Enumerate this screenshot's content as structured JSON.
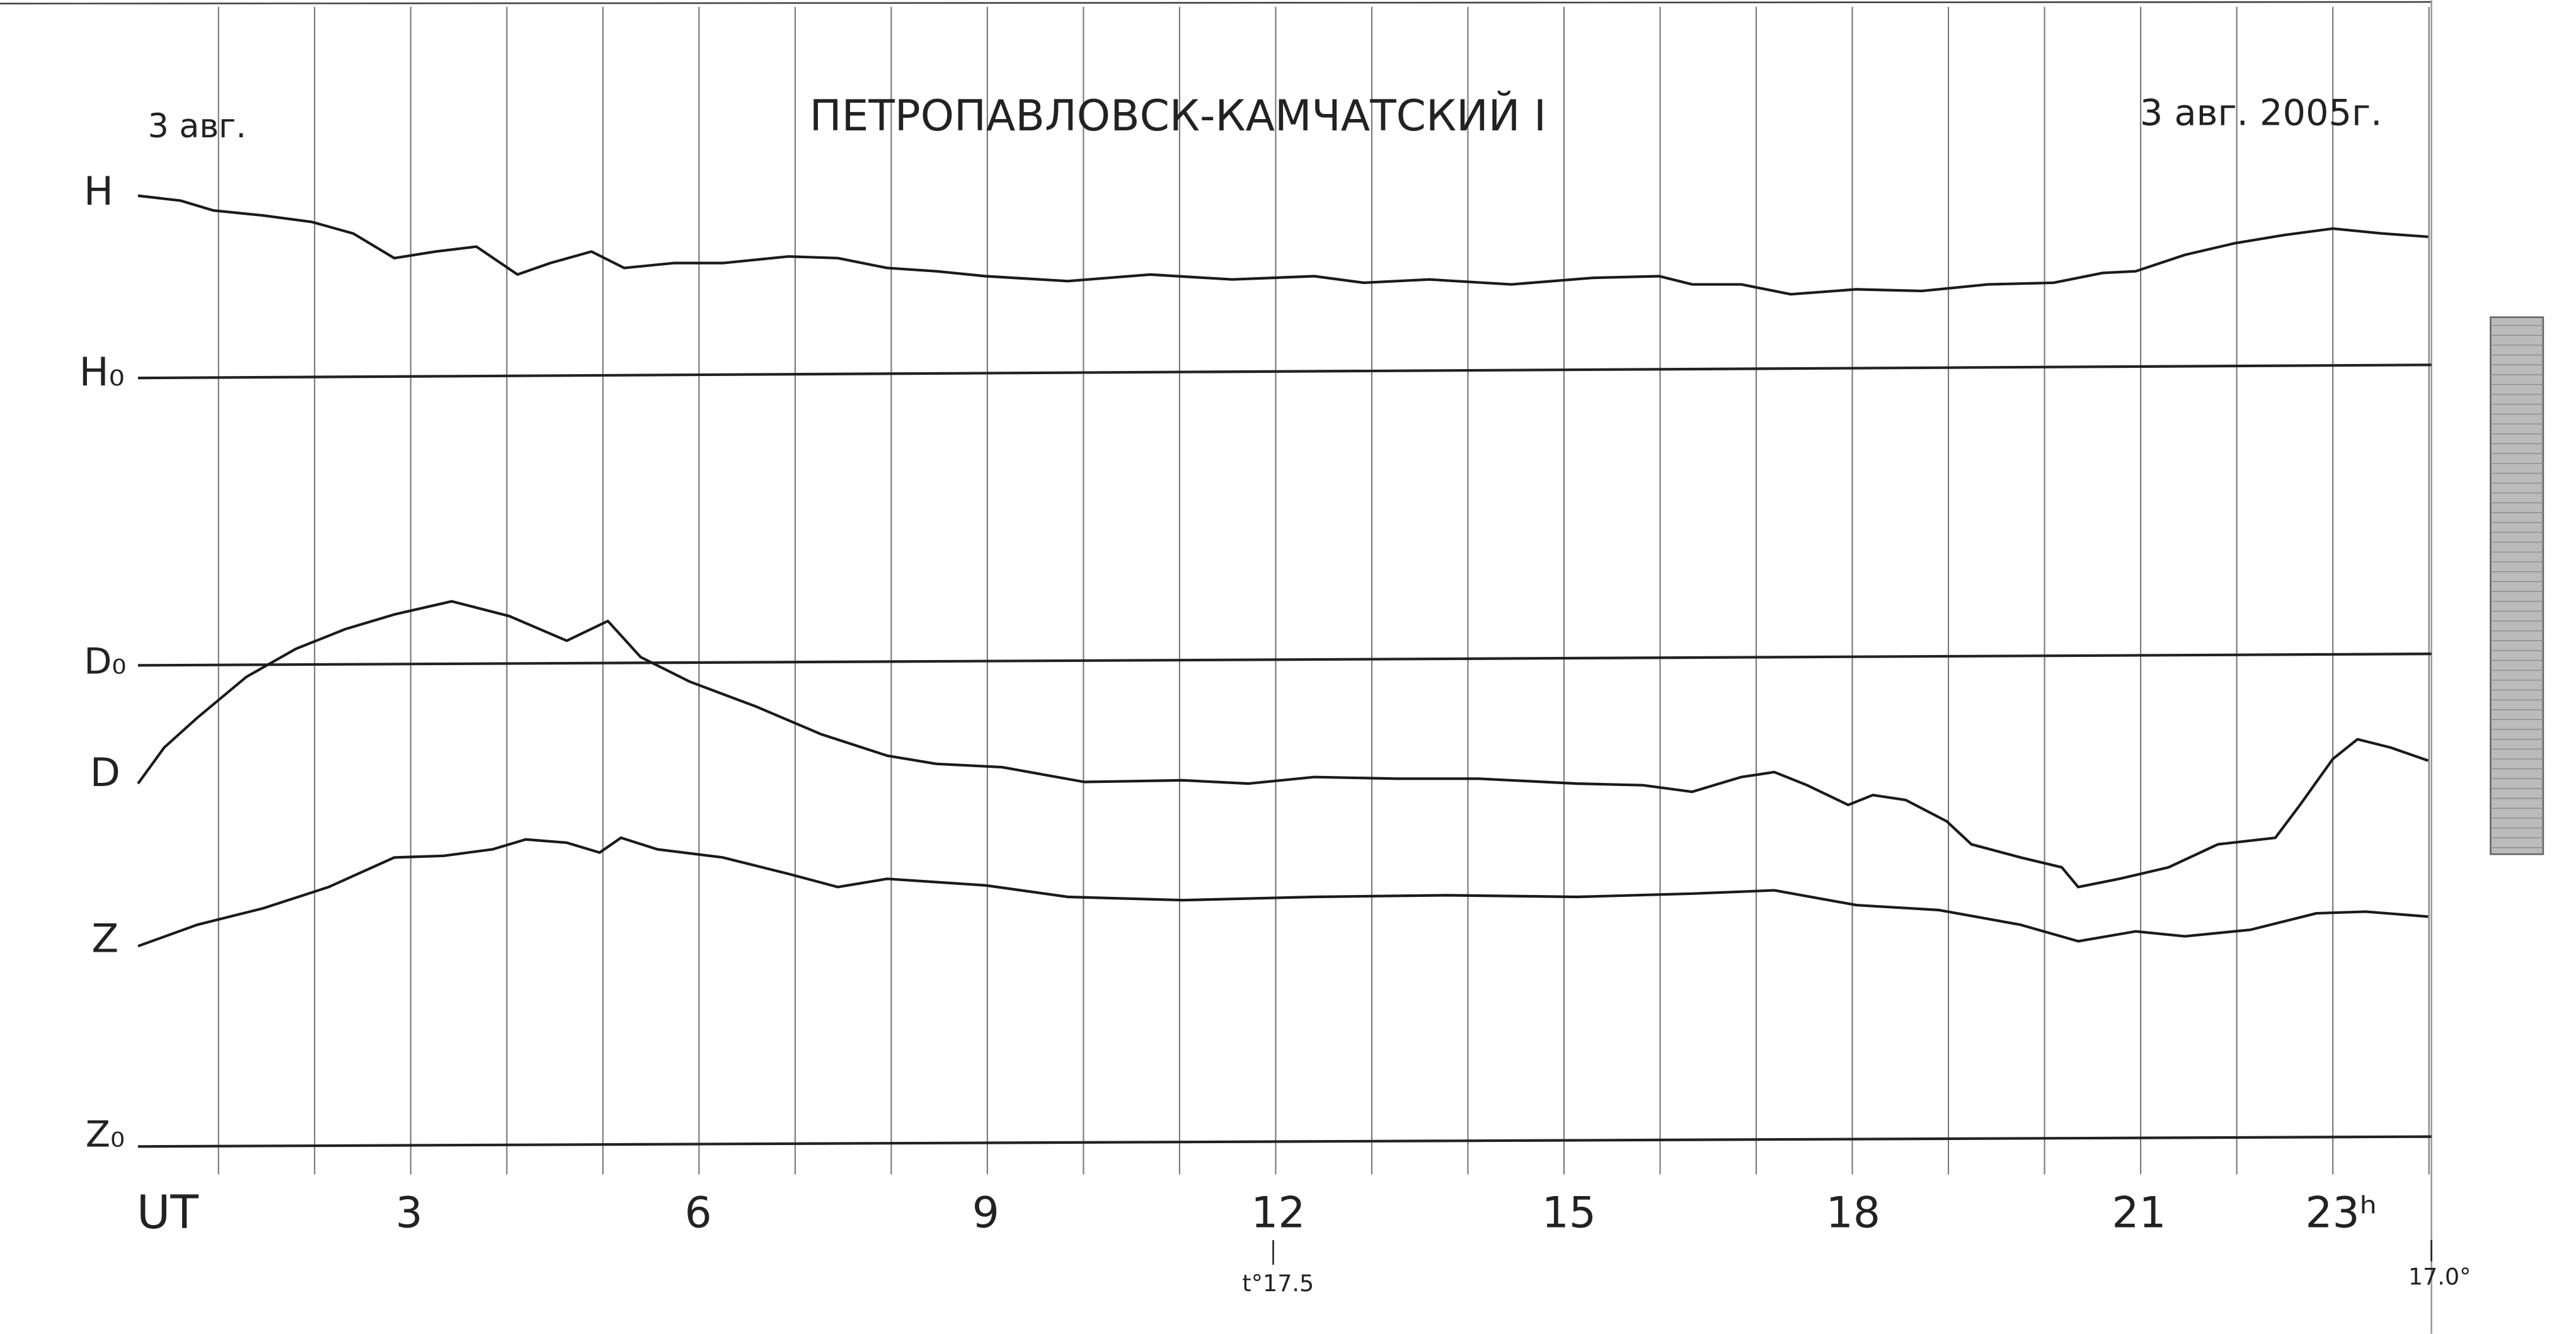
{
  "header": {
    "date_left": "3 авг.",
    "title": "ПЕТРОПАВЛОВСК-КАМЧАТСКИЙ I",
    "date_right": "3 авг. 2005г."
  },
  "traces": {
    "labels": [
      "H",
      "H₀",
      "D₀",
      "D",
      "Z",
      "Z₀"
    ]
  },
  "time_axis": {
    "label": "UT",
    "hours": [
      "3",
      "6",
      "9",
      "12",
      "15",
      "18",
      "21",
      "23ʰ"
    ]
  },
  "temperatures": [
    "t°17.5",
    "17.0°"
  ]
}
